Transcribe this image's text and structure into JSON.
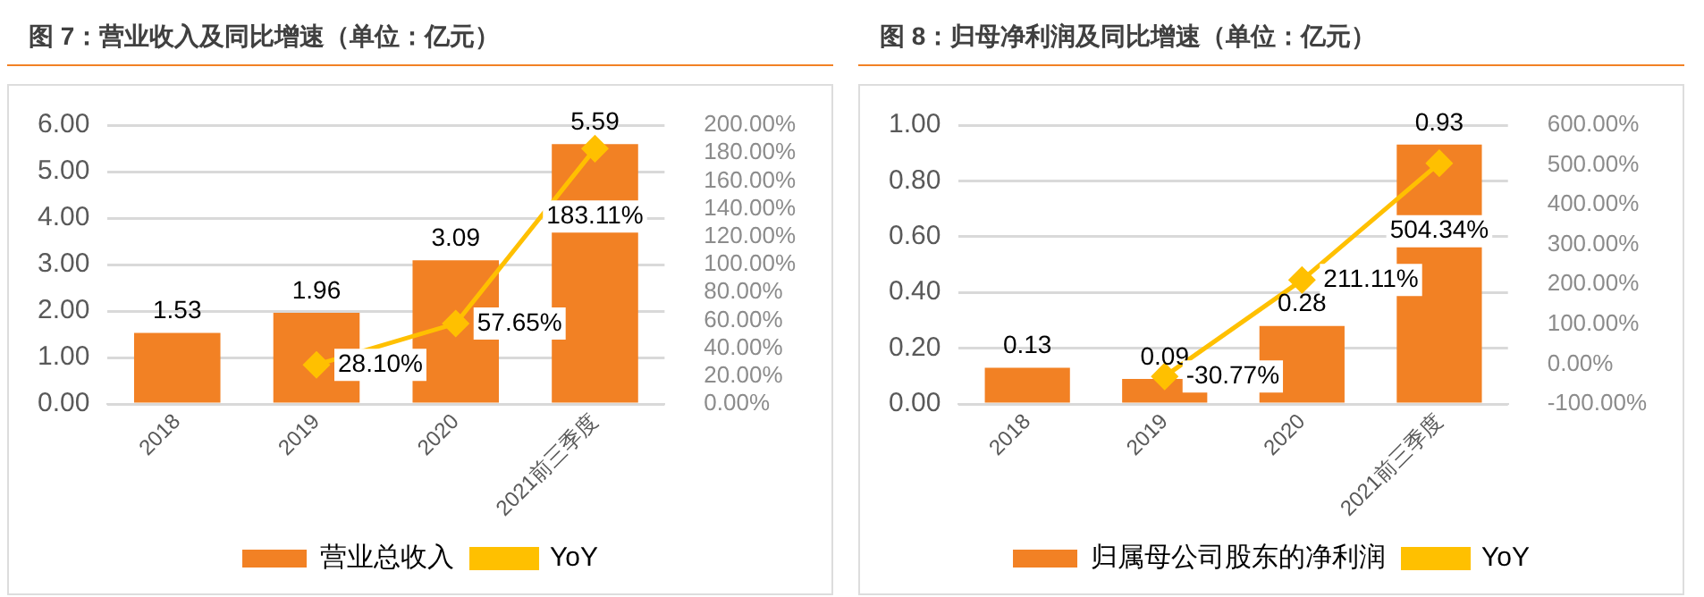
{
  "chart_data": [
    {
      "type": "bar",
      "title": "图 7：营业收入及同比增速（单位：亿元）",
      "categories": [
        "2018",
        "2019",
        "2020",
        "2021前三季度"
      ],
      "series": [
        {
          "name": "营业总收入",
          "color": "#f28124",
          "values": [
            1.53,
            1.96,
            3.09,
            5.59
          ],
          "value_labels": [
            "1.53",
            "1.96",
            "3.09",
            "5.59"
          ]
        },
        {
          "name": "YoY",
          "type": "line",
          "axis": "y2",
          "color": "#ffc000",
          "values": [
            null,
            28.1,
            57.65,
            183.11
          ],
          "value_labels": [
            null,
            "28.10%",
            "57.65%",
            "183.11%"
          ]
        }
      ],
      "ylim": [
        0,
        6
      ],
      "yticks": [
        {
          "value": 0,
          "label": "0.00"
        },
        {
          "value": 1,
          "label": "1.00"
        },
        {
          "value": 2,
          "label": "2.00"
        },
        {
          "value": 3,
          "label": "3.00"
        },
        {
          "value": 4,
          "label": "4.00"
        },
        {
          "value": 5,
          "label": "5.00"
        },
        {
          "value": 6,
          "label": "6.00"
        }
      ],
      "y2lim": [
        0,
        200
      ],
      "y2ticks": [
        {
          "value": 0,
          "label": "0.00%"
        },
        {
          "value": 20,
          "label": "20.00%"
        },
        {
          "value": 40,
          "label": "40.00%"
        },
        {
          "value": 60,
          "label": "60.00%"
        },
        {
          "value": 80,
          "label": "80.00%"
        },
        {
          "value": 100,
          "label": "100.00%"
        },
        {
          "value": 120,
          "label": "120.00%"
        },
        {
          "value": 140,
          "label": "140.00%"
        },
        {
          "value": 160,
          "label": "160.00%"
        },
        {
          "value": 180,
          "label": "180.00%"
        },
        {
          "value": 200,
          "label": "200.00%"
        }
      ],
      "grid": "y",
      "legend": "bottom",
      "marker": "diamond"
    },
    {
      "type": "bar",
      "title": "图 8：归母净利润及同比增速（单位：亿元）",
      "categories": [
        "2018",
        "2019",
        "2020",
        "2021前三季度"
      ],
      "series": [
        {
          "name": "归属母公司股东的净利润",
          "color": "#f28124",
          "values": [
            0.13,
            0.09,
            0.28,
            0.93
          ],
          "value_labels": [
            "0.13",
            "0.09",
            "0.28",
            "0.93"
          ]
        },
        {
          "name": "YoY",
          "type": "line",
          "axis": "y2",
          "color": "#ffc000",
          "values": [
            null,
            -30.77,
            211.11,
            504.34
          ],
          "value_labels": [
            null,
            "-30.77%",
            "211.11%",
            "504.34%"
          ]
        }
      ],
      "ylim": [
        0,
        1
      ],
      "yticks": [
        {
          "value": 0,
          "label": "0.00"
        },
        {
          "value": 0.2,
          "label": "0.20"
        },
        {
          "value": 0.4,
          "label": "0.40"
        },
        {
          "value": 0.6,
          "label": "0.60"
        },
        {
          "value": 0.8,
          "label": "0.80"
        },
        {
          "value": 1,
          "label": "1.00"
        }
      ],
      "y2lim": [
        -100,
        600
      ],
      "y2ticks": [
        {
          "value": -100,
          "label": "-100.00%"
        },
        {
          "value": 0,
          "label": "0.00%"
        },
        {
          "value": 100,
          "label": "100.00%"
        },
        {
          "value": 200,
          "label": "200.00%"
        },
        {
          "value": 300,
          "label": "300.00%"
        },
        {
          "value": 400,
          "label": "400.00%"
        },
        {
          "value": 500,
          "label": "500.00%"
        },
        {
          "value": 600,
          "label": "600.00%"
        }
      ],
      "grid": "y",
      "legend": "bottom",
      "marker": "diamond"
    }
  ]
}
